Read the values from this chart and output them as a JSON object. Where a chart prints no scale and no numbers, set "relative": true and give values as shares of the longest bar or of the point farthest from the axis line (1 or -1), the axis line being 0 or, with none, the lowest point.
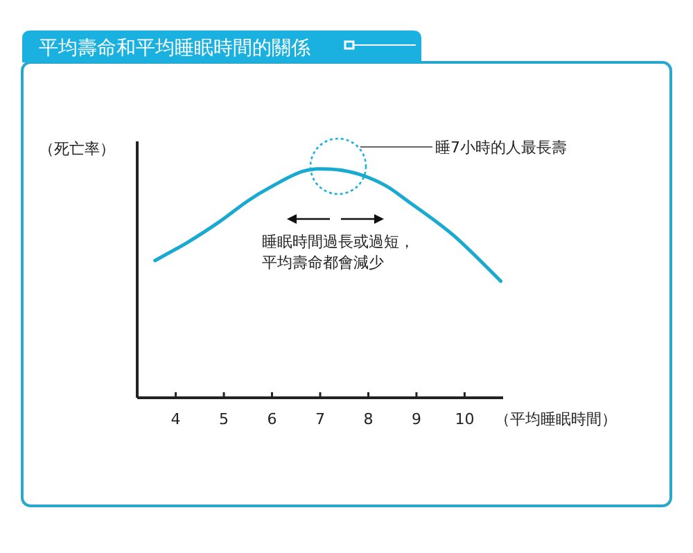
{
  "chart_data": {
    "type": "line",
    "title": "平均壽命和平均睡眠時間的關係",
    "ylabel": "（死亡率）",
    "xlabel": "（平均睡眠時間）",
    "relative": true,
    "tick_labels": "x",
    "x": [
      3.57,
      4.25,
      4.91,
      5.49,
      5.96,
      6.63,
      7.2,
      7.77,
      8.34,
      8.82,
      9.77,
      10.75
    ],
    "values": [
      0.6,
      0.68,
      0.77,
      0.86,
      0.92,
      0.99,
      1.0,
      0.98,
      0.93,
      0.86,
      0.71,
      0.51
    ],
    "color": "#1aa9d0",
    "xlim": [
      3.2,
      10.8
    ],
    "xticks": [
      4,
      5,
      6,
      7,
      8,
      9,
      10
    ],
    "annotations": [
      "睡7小時的人最長壽",
      "睡眠時間過長或過短，",
      "平均壽命都會減少"
    ]
  }
}
